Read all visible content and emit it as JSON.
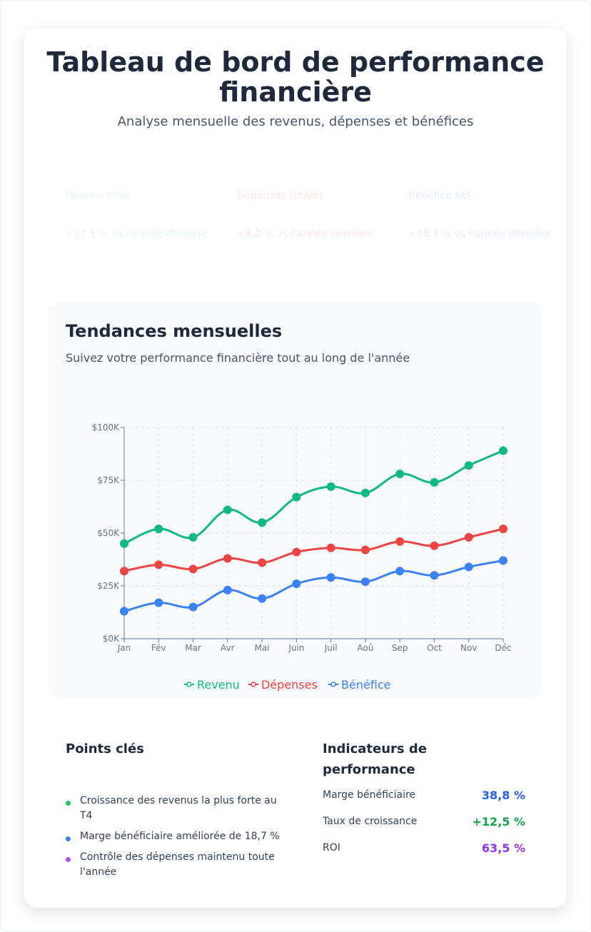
{
  "header": {
    "title": "Tableau de bord de performance financière",
    "subtitle": "Analyse mensuelle des revenus, dépenses et bénéfices"
  },
  "stats": [
    {
      "label": "Revenu total",
      "change": "+12,5 % vs l'année dernière",
      "color": "#e6f7ee"
    },
    {
      "label": "Dépenses totales",
      "change": "+8,2 % vs l'année dernière",
      "color": "#fbe7e7"
    },
    {
      "label": "Bénéfice net",
      "change": "+18,7 % vs l'année dernière",
      "color": "#e5eefc"
    }
  ],
  "trends": {
    "title": "Tendances mensuelles",
    "subtitle": "Suivez votre performance financière tout au long de l'année"
  },
  "chart_data": {
    "type": "line",
    "categories": [
      "Jan",
      "Fév",
      "Mar",
      "Avr",
      "Mai",
      "Juin",
      "Juil",
      "Aoû",
      "Sep",
      "Oct",
      "Nov",
      "Déc"
    ],
    "ylim": [
      0,
      100000
    ],
    "yticks": [
      0,
      25000,
      50000,
      75000,
      100000
    ],
    "ytick_labels": [
      "$0K",
      "$25K",
      "$50K",
      "$75K",
      "$100K"
    ],
    "grid": true,
    "legend_position": "bottom",
    "series": [
      {
        "name": "Revenu",
        "color": "#10b981",
        "values": [
          45000,
          52000,
          48000,
          61000,
          55000,
          67000,
          72000,
          69000,
          78000,
          74000,
          82000,
          89000
        ]
      },
      {
        "name": "Dépenses",
        "color": "#ef4444",
        "values": [
          32000,
          35000,
          33000,
          38000,
          36000,
          41000,
          43000,
          42000,
          46000,
          44000,
          48000,
          52000
        ]
      },
      {
        "name": "Bénéfice",
        "color": "#3b82f6",
        "values": [
          13000,
          17000,
          15000,
          23000,
          19000,
          26000,
          29000,
          27000,
          32000,
          30000,
          34000,
          37000
        ]
      }
    ]
  },
  "key_points": {
    "title": "Points clés",
    "items": [
      {
        "text": "Croissance des revenus la plus forte au T4",
        "color": "#22c55e"
      },
      {
        "text": "Marge bénéficiaire améliorée de 18,7 %",
        "color": "#3b82f6"
      },
      {
        "text": "Contrôle des dépenses maintenu toute l'année",
        "color": "#a855f7"
      }
    ]
  },
  "indicators": {
    "title": "Indicateurs de performance",
    "items": [
      {
        "label": "Marge bénéficiaire",
        "value": "38,8 %",
        "color": "#2563eb"
      },
      {
        "label": "Taux de croissance",
        "value": "+12,5 %",
        "color": "#16a34a"
      },
      {
        "label": "ROI",
        "value": "63,5 %",
        "color": "#9333ea"
      }
    ]
  }
}
